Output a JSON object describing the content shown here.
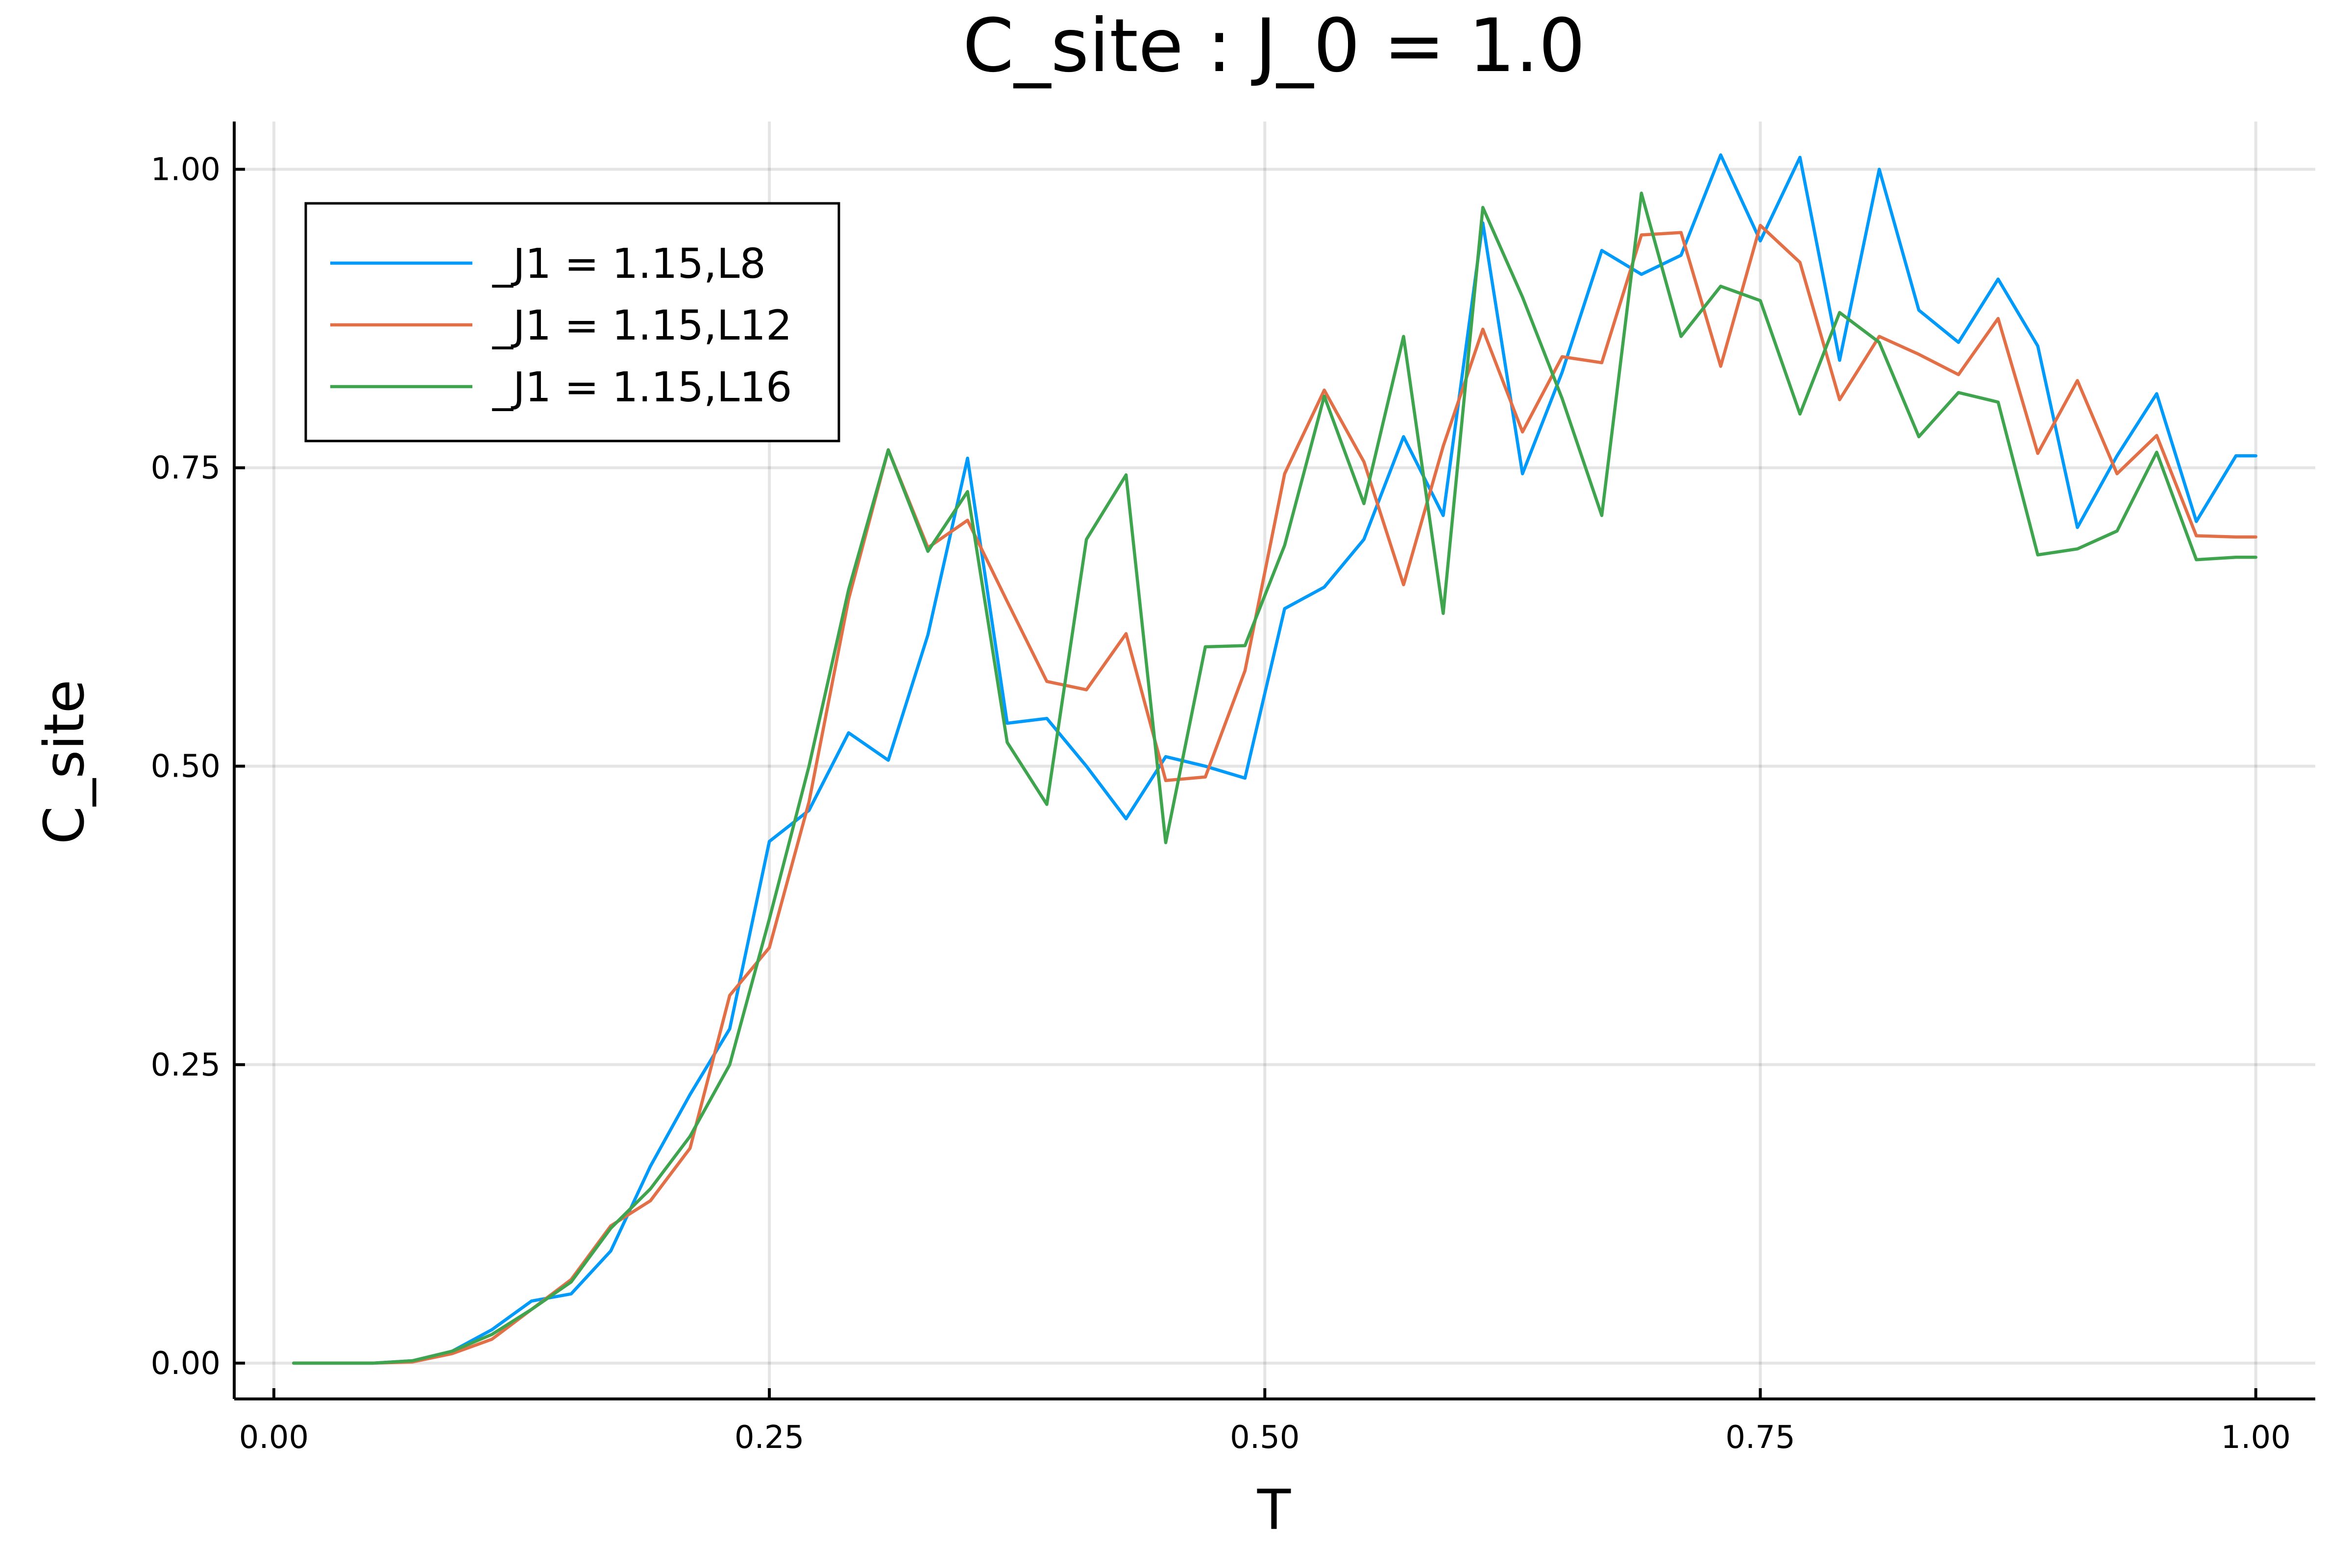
{
  "chart_data": {
    "type": "line",
    "title": "C_site : J_0 = 1.0",
    "xlabel": "T",
    "ylabel": "C_site",
    "xlim": [
      -0.02,
      1.03
    ],
    "ylim": [
      -0.03,
      1.04
    ],
    "xticks": [
      0.0,
      0.25,
      0.5,
      0.75,
      1.0
    ],
    "xtick_labels": [
      "0.00",
      "0.25",
      "0.50",
      "0.75",
      "1.00"
    ],
    "yticks": [
      0.0,
      0.25,
      0.5,
      0.75,
      1.0
    ],
    "ytick_labels": [
      "0.00",
      "0.25",
      "0.50",
      "0.75",
      "1.00"
    ],
    "grid": true,
    "legend_position": "top-left",
    "x": [
      0.01,
      0.03,
      0.05,
      0.07,
      0.09,
      0.11,
      0.13,
      0.15,
      0.17,
      0.19,
      0.21,
      0.23,
      0.25,
      0.27,
      0.29,
      0.31,
      0.33,
      0.35,
      0.37,
      0.39,
      0.41,
      0.43,
      0.45,
      0.47,
      0.49,
      0.51,
      0.53,
      0.55,
      0.57,
      0.59,
      0.61,
      0.63,
      0.65,
      0.67,
      0.69,
      0.71,
      0.73,
      0.75,
      0.77,
      0.79,
      0.81,
      0.83,
      0.85,
      0.87,
      0.89,
      0.91,
      0.93,
      0.95,
      0.97,
      0.99,
      1.0
    ],
    "series": [
      {
        "name": "_J1 = 1.15,L8",
        "color": "#009AFA",
        "values": [
          0.0,
          0.0,
          0.0,
          0.002,
          0.01,
          0.028,
          0.052,
          0.058,
          0.094,
          0.165,
          0.225,
          0.28,
          0.437,
          0.463,
          0.528,
          0.505,
          0.61,
          0.758,
          0.536,
          0.54,
          0.5,
          0.456,
          0.508,
          0.5,
          0.49,
          0.632,
          0.65,
          0.69,
          0.776,
          0.71,
          0.955,
          0.745,
          0.83,
          0.932,
          0.912,
          0.928,
          1.012,
          0.94,
          1.01,
          0.84,
          1.0,
          0.882,
          0.855,
          0.908,
          0.852,
          0.7,
          0.76,
          0.812,
          0.705,
          0.76,
          0.76
        ]
      },
      {
        "name": "_J1 = 1.15,L12",
        "color": "#E36F47",
        "values": [
          0.0,
          0.0,
          0.0,
          0.001,
          0.008,
          0.02,
          0.045,
          0.07,
          0.115,
          0.136,
          0.18,
          0.308,
          0.348,
          0.47,
          0.64,
          0.765,
          0.683,
          0.706,
          0.638,
          0.571,
          0.564,
          0.611,
          0.488,
          0.491,
          0.58,
          0.745,
          0.815,
          0.755,
          0.652,
          0.768,
          0.866,
          0.78,
          0.843,
          0.838,
          0.945,
          0.947,
          0.835,
          0.953,
          0.922,
          0.807,
          0.86,
          0.845,
          0.828,
          0.875,
          0.762,
          0.823,
          0.745,
          0.777,
          0.693,
          0.692,
          0.692
        ]
      },
      {
        "name": "_J1 = 1.15,L16",
        "color": "#3EA44E",
        "values": [
          0.0,
          0.0,
          0.0,
          0.002,
          0.01,
          0.024,
          0.045,
          0.068,
          0.113,
          0.146,
          0.19,
          0.25,
          0.372,
          0.5,
          0.648,
          0.765,
          0.68,
          0.73,
          0.52,
          0.468,
          0.69,
          0.744,
          0.436,
          0.6,
          0.601,
          0.685,
          0.81,
          0.72,
          0.86,
          0.628,
          0.968,
          0.893,
          0.808,
          0.71,
          0.98,
          0.86,
          0.902,
          0.89,
          0.795,
          0.88,
          0.855,
          0.776,
          0.813,
          0.805,
          0.677,
          0.682,
          0.697,
          0.763,
          0.673,
          0.675,
          0.675
        ]
      }
    ]
  }
}
